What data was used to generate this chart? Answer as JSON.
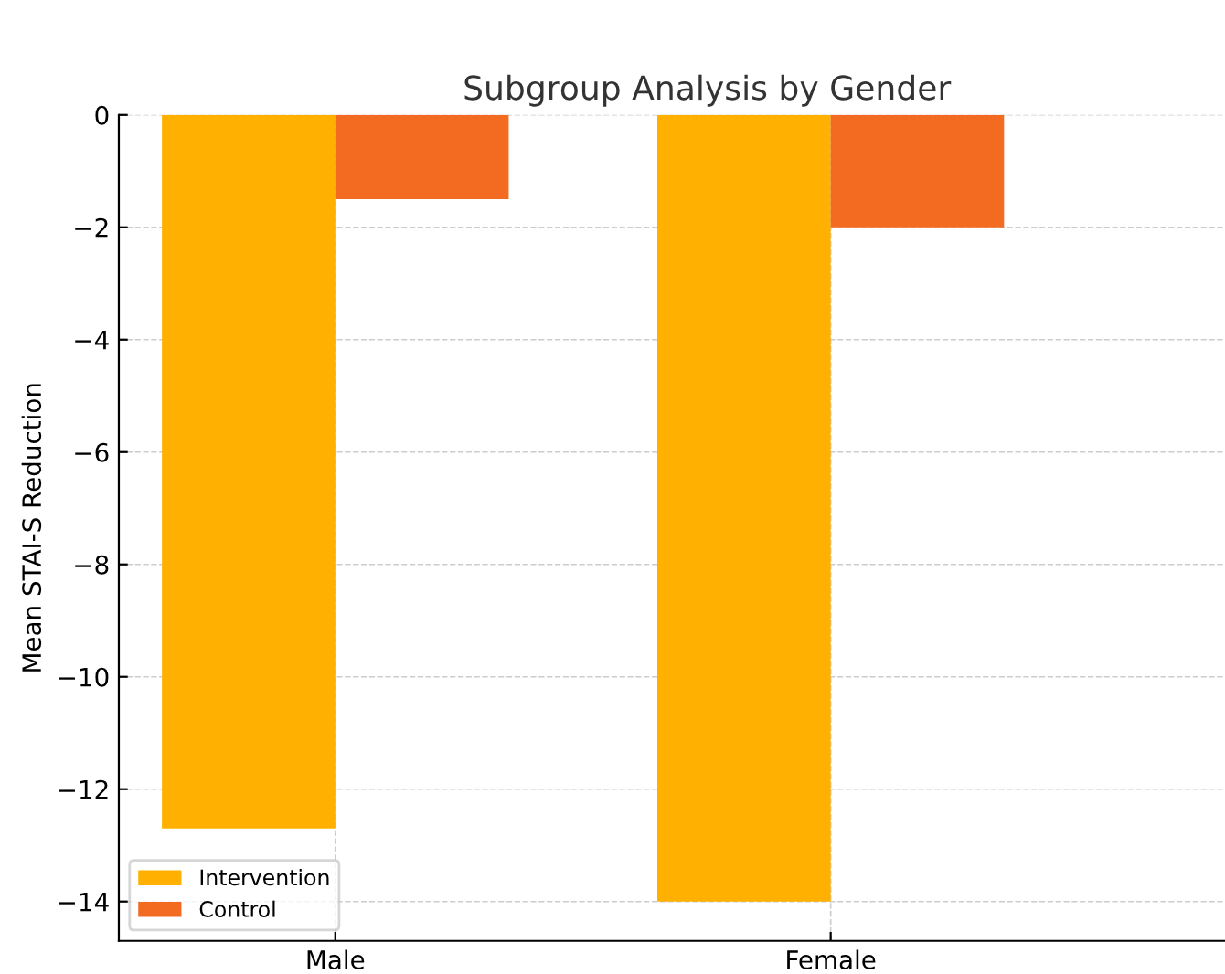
{
  "chart_data": {
    "type": "bar",
    "title": "Subgroup Analysis by Gender",
    "ylabel": "Mean STAI-S Reduction",
    "categories": [
      "Male",
      "Female"
    ],
    "series": [
      {
        "name": "Intervention",
        "color": "#ffb000",
        "values": [
          -12.7,
          -14
        ]
      },
      {
        "name": "Control",
        "color": "#f26b21",
        "values": [
          -1.5,
          -2
        ]
      }
    ],
    "ylim": [
      -14.7,
      0
    ],
    "yticks": [
      0,
      -2,
      -4,
      -6,
      -8,
      -10,
      -12,
      -14
    ],
    "grid": true,
    "legend": "bottom left"
  }
}
